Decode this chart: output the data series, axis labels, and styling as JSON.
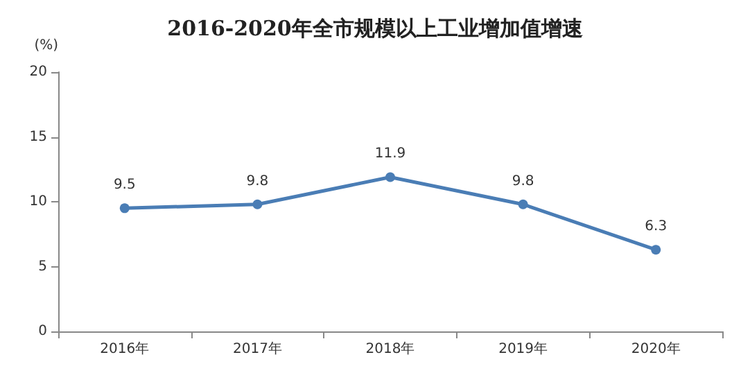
{
  "chart_data": {
    "type": "line",
    "title": "2016-2020年全市规模以上工业增加值增速",
    "ylabel": "(%)",
    "categories": [
      "2016年",
      "2017年",
      "2018年",
      "2019年",
      "2020年"
    ],
    "series": [
      {
        "color": "#4a7db5",
        "values": [
          9.5,
          9.8,
          11.9,
          9.8,
          6.3
        ]
      }
    ],
    "ylim": [
      0,
      20
    ],
    "yticks": [
      0,
      5,
      10,
      15,
      20
    ],
    "grid": false,
    "marker": "circle",
    "line_style": "solid",
    "data_labels": true
  }
}
